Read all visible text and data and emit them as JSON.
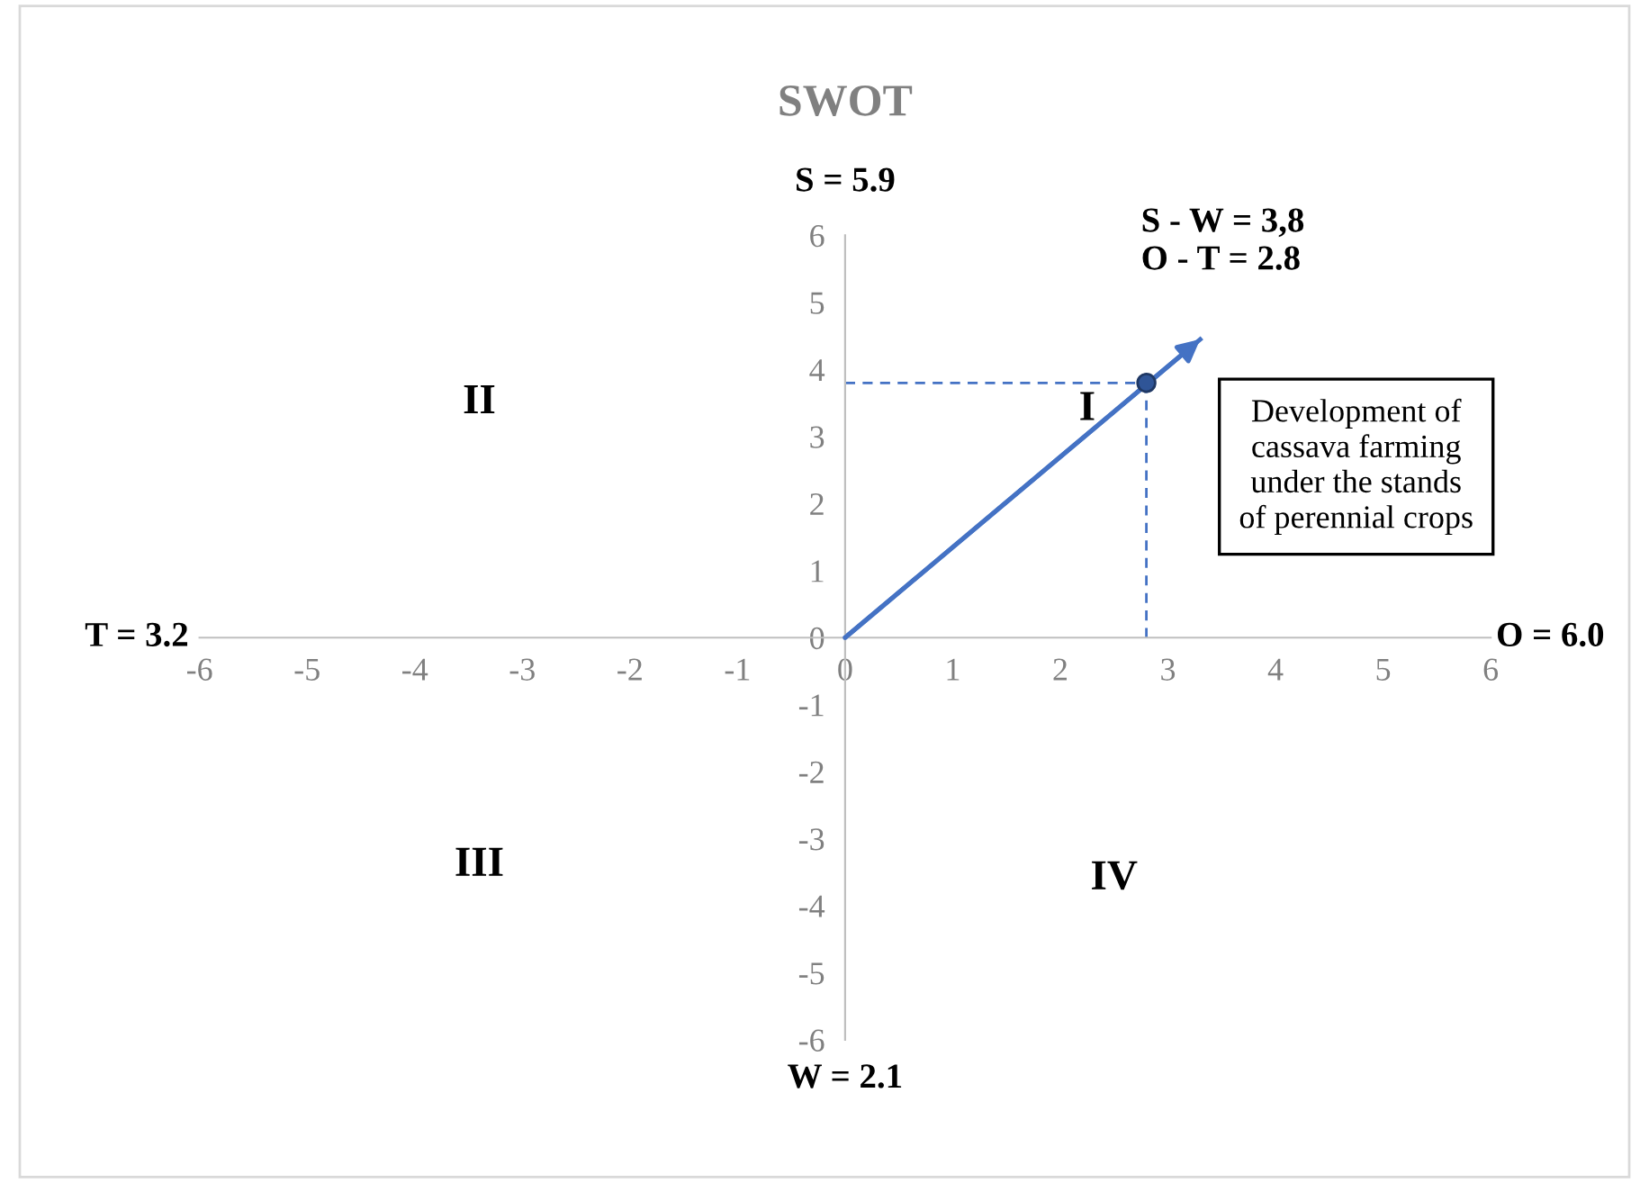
{
  "chart_data": {
    "type": "scatter",
    "title": "SWOT",
    "xlabel": "O = 6.0",
    "ylabel": "S = 5.9",
    "xlim": [
      -6,
      6
    ],
    "ylim": [
      -6,
      6
    ],
    "xticks": [
      -6,
      -5,
      -4,
      -3,
      -2,
      -1,
      0,
      1,
      2,
      3,
      4,
      5,
      6
    ],
    "yticks": [
      -6,
      -5,
      -4,
      -3,
      -2,
      -1,
      0,
      1,
      2,
      3,
      4,
      5,
      6
    ],
    "grid": false,
    "series": [
      {
        "type": "line",
        "color": "#4472c4",
        "x": [
          0,
          3.3
        ],
        "values": [
          0,
          4.45
        ],
        "line_style": "solid",
        "marker": "none"
      },
      {
        "type": "line",
        "color": "#4472c4",
        "x": [
          0,
          2.8
        ],
        "values": [
          3.8,
          3.8
        ],
        "line_style": "dashed",
        "marker": "none"
      },
      {
        "type": "line",
        "color": "#4472c4",
        "x": [
          2.8,
          2.8
        ],
        "values": [
          3.8,
          0
        ],
        "line_style": "dashed",
        "marker": "none"
      },
      {
        "color": "#2f5597",
        "x": [
          2.8
        ],
        "values": [
          3.8
        ],
        "marker": "circle"
      }
    ],
    "annotations": [
      "T = 3.2",
      "W = 2.1",
      "II",
      "I",
      "III",
      "IV",
      "S - W = 3,8\nO - T = 2.8",
      "Development of\ncassava farming\nunder the stands\nof perennial crops"
    ]
  }
}
